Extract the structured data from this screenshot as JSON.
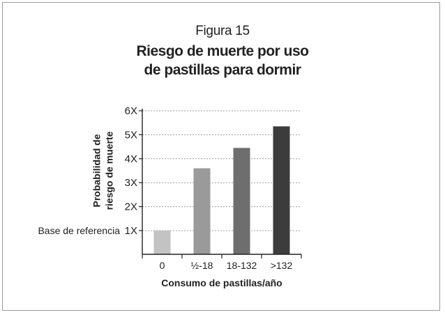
{
  "figure_label": "Figura 15",
  "title_lines": [
    "Riesgo de muerte por uso",
    "de pastillas para dormir"
  ],
  "chart_data": {
    "type": "bar",
    "categories": [
      "0",
      "½-18",
      "18-132",
      ">132"
    ],
    "values": [
      1.0,
      3.6,
      4.45,
      5.35
    ],
    "colors": [
      "#c3c3c3",
      "#9a9a9a",
      "#6e6e6e",
      "#3c3c3c"
    ],
    "yticks": [
      "1X",
      "2X",
      "3X",
      "4X",
      "5X",
      "6X"
    ],
    "ylim": [
      0.8,
      6
    ],
    "xlabel": "Consumo de pastillas/año",
    "ylabel_lines": [
      "Probabilidad de",
      "riesgo de muerte"
    ],
    "baseline_label": "Base de referencia",
    "grid": true
  }
}
